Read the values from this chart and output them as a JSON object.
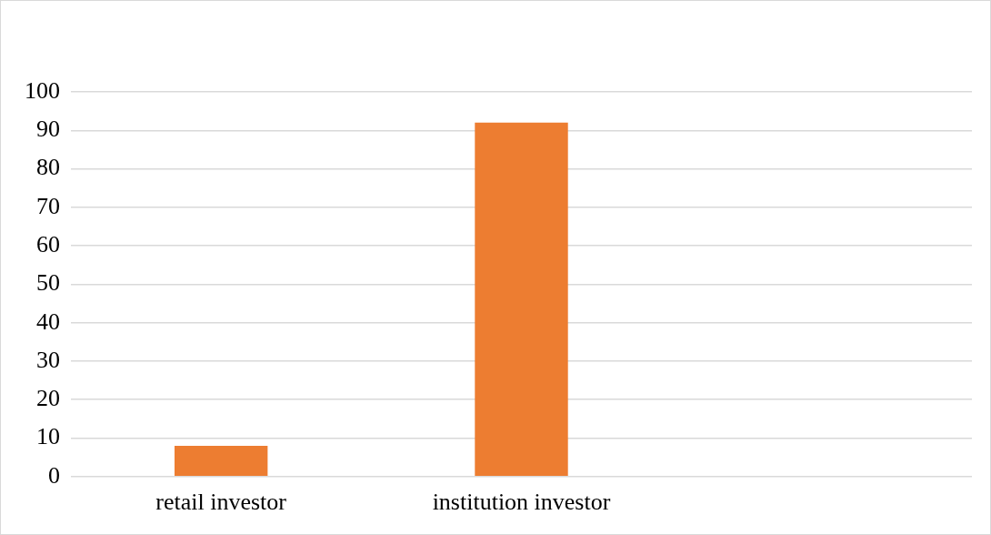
{
  "chart_data": {
    "type": "bar",
    "categories": [
      "retail investor",
      "institution investor",
      null
    ],
    "values": [
      8,
      92,
      null
    ],
    "color": "#ed7d31",
    "ylim": [
      0,
      100
    ],
    "yticks": [
      0,
      10,
      20,
      30,
      40,
      50,
      60,
      70,
      80,
      90,
      100
    ],
    "grid": "y",
    "legend": false
  }
}
